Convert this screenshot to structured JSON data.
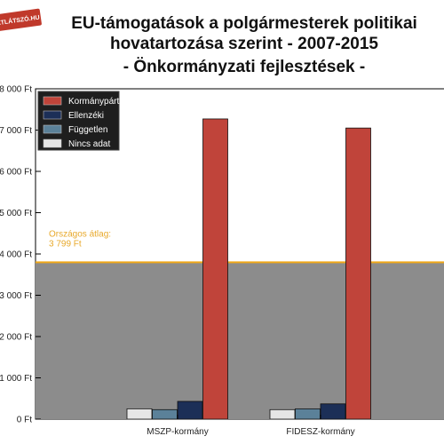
{
  "brand": {
    "label": "ÁTLÁTSZÓ.HU",
    "color": "#c0392b"
  },
  "chart_data": {
    "type": "bar",
    "title_lines": [
      "EU-támogatások a polgármesterek politikai",
      "hovatartozása szerint - 2007-2015",
      "- Önkormányzati fejlesztések -"
    ],
    "categories": [
      "MSZP-kormány",
      "FIDESZ-kormány"
    ],
    "series": [
      {
        "name": "Nincs adat",
        "color": "#e6e6e6",
        "values": [
          250,
          230
        ]
      },
      {
        "name": "Független",
        "color": "#5b8199",
        "values": [
          230,
          250
        ]
      },
      {
        "name": "Ellenzéki",
        "color": "#1c2f57",
        "values": [
          430,
          370
        ]
      },
      {
        "name": "Kormánypárti",
        "color": "#c0443a",
        "values": [
          7270,
          7050
        ]
      }
    ],
    "y_ticks": [
      {
        "value": 0,
        "label": "0 Ft"
      },
      {
        "value": 1000,
        "label": "1 000 Ft"
      },
      {
        "value": 2000,
        "label": "2 000 Ft"
      },
      {
        "value": 3000,
        "label": "3 000 Ft"
      },
      {
        "value": 4000,
        "label": "4 000 Ft"
      },
      {
        "value": 5000,
        "label": "5 000 Ft"
      },
      {
        "value": 6000,
        "label": "6 000 Ft"
      },
      {
        "value": 7000,
        "label": "7 000 Ft"
      },
      {
        "value": 8000,
        "label": "8 000 Ft"
      }
    ],
    "ylim": [
      0,
      8000
    ],
    "average": {
      "value": 3799,
      "label_line1": "Országos átlag:",
      "label_line2": "3 799 Ft",
      "color": "#f0a818",
      "fill_color": "#8c8c8c"
    },
    "legend_placement": "top-left",
    "grid": false
  }
}
